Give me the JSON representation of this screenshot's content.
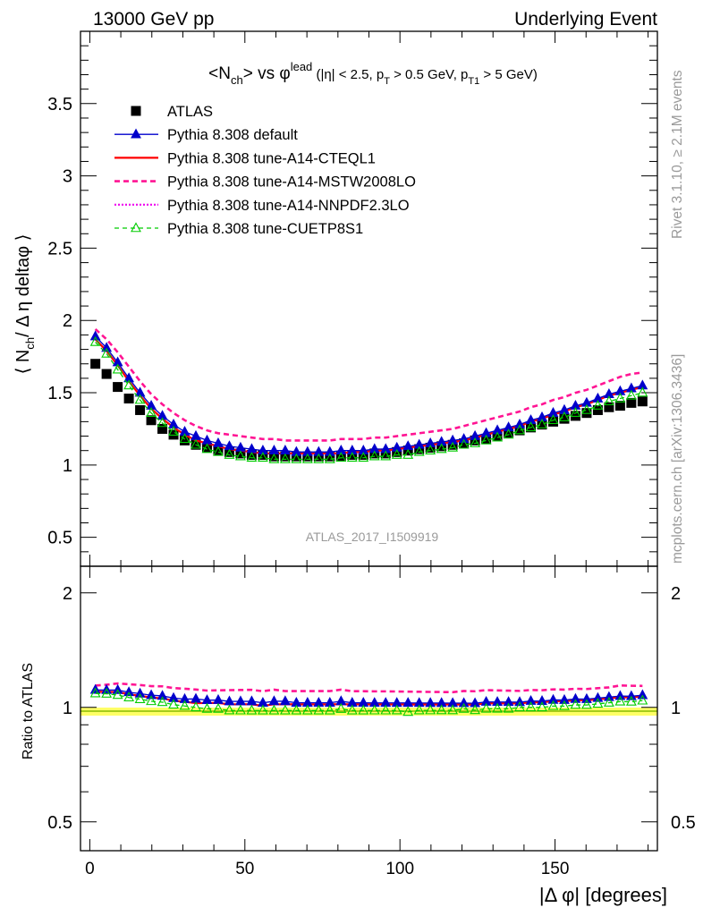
{
  "header": {
    "energy": "13000 GeV pp",
    "process": "Underlying Event"
  },
  "side_labels": {
    "rivet": "Rivet 3.1.10, ≥ 2.1M events",
    "mcplots": "mcplots.cern.ch [arXiv:1306.3436]"
  },
  "colors": {
    "atlas": "#000000",
    "default": "#0000cc",
    "cteql1": "#ff0000",
    "mstw": "#ff1493",
    "nnpdf": "#ee00ee",
    "cuetp": "#00cc00",
    "ref_band": "#ffff66",
    "ref_line": "#88bb00",
    "watermark": "#9a9a9a"
  },
  "chart_data": {
    "type": "line",
    "title": "<Nch> vs φlead (|η| < 2.5, pT > 0.5 GeV, pT1 > 5 GeV)",
    "title_parts": {
      "a": "<N",
      "a_sub": "ch",
      "b": "> vs φ",
      "b_sup": "lead",
      "c": " (|η| < 2.5, p",
      "c_sub": "T",
      "d": " > 0.5 GeV, p",
      "d_sub": "T1",
      "e": " > 5 GeV)"
    },
    "ylabel": "⟨ Nch / Δη deltaφ ⟩",
    "ylabel_parts": {
      "a": "⟨ N",
      "a_sub": "ch",
      "b": "/ Δ η deltaφ ⟩"
    },
    "xlabel": "|Δ φ| [degrees]",
    "ratio_ylabel": "Ratio to ATLAS",
    "watermark": "ATLAS_2017_I1509919",
    "xlim": [
      -3,
      183
    ],
    "ylim": [
      0.3,
      4.0
    ],
    "ratio_ylim": [
      0.42,
      2.35
    ],
    "ratio_log": true,
    "x_ticks": [
      0,
      50,
      100,
      150
    ],
    "y_ticks": [
      0.5,
      1,
      1.5,
      2,
      2.5,
      3,
      3.5
    ],
    "y_tick_labels": [
      "0.5",
      "1",
      "1.5",
      "2",
      "2.5",
      "3",
      "3.5"
    ],
    "ratio_ticks": [
      0.5,
      1,
      2
    ],
    "ratio_tick_labels": [
      "0.5",
      "1",
      "2"
    ],
    "legend_position": "top-left",
    "x": [
      1.8,
      5.4,
      9.0,
      12.6,
      16.2,
      19.8,
      23.4,
      27.0,
      30.6,
      34.2,
      37.8,
      41.4,
      45.0,
      48.6,
      52.2,
      55.8,
      59.4,
      63.0,
      66.6,
      70.2,
      73.8,
      77.4,
      81.0,
      84.6,
      88.2,
      91.8,
      95.4,
      99.0,
      102.6,
      106.2,
      109.8,
      113.4,
      117.0,
      120.6,
      124.2,
      127.8,
      131.4,
      135.0,
      138.6,
      142.2,
      145.8,
      149.4,
      153.0,
      156.6,
      160.2,
      163.8,
      167.4,
      171.0,
      174.6,
      178.2
    ],
    "series": [
      {
        "key": "atlas",
        "name": "ATLAS",
        "values": [
          1.7,
          1.63,
          1.54,
          1.46,
          1.38,
          1.31,
          1.25,
          1.21,
          1.17,
          1.14,
          1.12,
          1.1,
          1.09,
          1.08,
          1.07,
          1.07,
          1.06,
          1.06,
          1.06,
          1.06,
          1.06,
          1.06,
          1.06,
          1.07,
          1.07,
          1.08,
          1.08,
          1.09,
          1.1,
          1.11,
          1.12,
          1.13,
          1.14,
          1.15,
          1.17,
          1.18,
          1.2,
          1.22,
          1.24,
          1.26,
          1.28,
          1.3,
          1.32,
          1.34,
          1.36,
          1.38,
          1.4,
          1.41,
          1.43,
          1.44
        ]
      },
      {
        "key": "default",
        "name": "Pythia 8.308 default",
        "values": [
          1.89,
          1.81,
          1.71,
          1.6,
          1.5,
          1.41,
          1.34,
          1.28,
          1.23,
          1.2,
          1.17,
          1.15,
          1.13,
          1.12,
          1.11,
          1.1,
          1.1,
          1.1,
          1.09,
          1.09,
          1.09,
          1.09,
          1.1,
          1.1,
          1.1,
          1.11,
          1.11,
          1.12,
          1.13,
          1.14,
          1.15,
          1.16,
          1.17,
          1.18,
          1.2,
          1.22,
          1.24,
          1.26,
          1.28,
          1.31,
          1.33,
          1.36,
          1.38,
          1.41,
          1.43,
          1.46,
          1.49,
          1.51,
          1.53,
          1.55
        ]
      },
      {
        "key": "cteql1",
        "name": "Pythia 8.308 tune-A14-CTEQL1",
        "values": [
          1.87,
          1.79,
          1.69,
          1.58,
          1.48,
          1.39,
          1.32,
          1.26,
          1.21,
          1.17,
          1.15,
          1.13,
          1.11,
          1.1,
          1.09,
          1.08,
          1.08,
          1.08,
          1.08,
          1.08,
          1.08,
          1.08,
          1.08,
          1.09,
          1.09,
          1.1,
          1.1,
          1.11,
          1.12,
          1.13,
          1.14,
          1.15,
          1.16,
          1.17,
          1.19,
          1.21,
          1.23,
          1.25,
          1.27,
          1.3,
          1.32,
          1.35,
          1.37,
          1.4,
          1.42,
          1.45,
          1.48,
          1.5,
          1.52,
          1.54
        ]
      },
      {
        "key": "mstw",
        "name": "Pythia 8.308 tune-A14-MSTW2008LO",
        "values": [
          1.94,
          1.87,
          1.78,
          1.68,
          1.58,
          1.49,
          1.42,
          1.36,
          1.31,
          1.27,
          1.24,
          1.22,
          1.21,
          1.2,
          1.19,
          1.18,
          1.18,
          1.17,
          1.17,
          1.17,
          1.17,
          1.17,
          1.18,
          1.18,
          1.18,
          1.19,
          1.19,
          1.2,
          1.21,
          1.22,
          1.23,
          1.24,
          1.25,
          1.27,
          1.29,
          1.31,
          1.33,
          1.35,
          1.37,
          1.4,
          1.42,
          1.45,
          1.47,
          1.5,
          1.52,
          1.55,
          1.58,
          1.61,
          1.63,
          1.64
        ]
      },
      {
        "key": "nnpdf",
        "name": "Pythia 8.308 tune-A14-NNPDF2.3LO",
        "values": [
          1.87,
          1.79,
          1.69,
          1.58,
          1.48,
          1.39,
          1.32,
          1.26,
          1.21,
          1.17,
          1.15,
          1.13,
          1.11,
          1.1,
          1.09,
          1.08,
          1.08,
          1.08,
          1.08,
          1.08,
          1.08,
          1.08,
          1.08,
          1.09,
          1.09,
          1.1,
          1.1,
          1.11,
          1.12,
          1.13,
          1.14,
          1.15,
          1.16,
          1.17,
          1.19,
          1.21,
          1.23,
          1.25,
          1.27,
          1.3,
          1.32,
          1.35,
          1.37,
          1.4,
          1.42,
          1.45,
          1.48,
          1.5,
          1.52,
          1.54
        ]
      },
      {
        "key": "cuetp",
        "name": "Pythia 8.308 tune-CUETP8S1",
        "values": [
          1.85,
          1.77,
          1.66,
          1.55,
          1.45,
          1.36,
          1.29,
          1.23,
          1.18,
          1.14,
          1.11,
          1.09,
          1.07,
          1.06,
          1.05,
          1.05,
          1.04,
          1.04,
          1.04,
          1.04,
          1.04,
          1.04,
          1.05,
          1.05,
          1.05,
          1.06,
          1.06,
          1.07,
          1.07,
          1.09,
          1.1,
          1.11,
          1.12,
          1.14,
          1.15,
          1.17,
          1.19,
          1.21,
          1.24,
          1.26,
          1.28,
          1.31,
          1.33,
          1.36,
          1.38,
          1.41,
          1.44,
          1.46,
          1.48,
          1.5
        ]
      }
    ]
  }
}
